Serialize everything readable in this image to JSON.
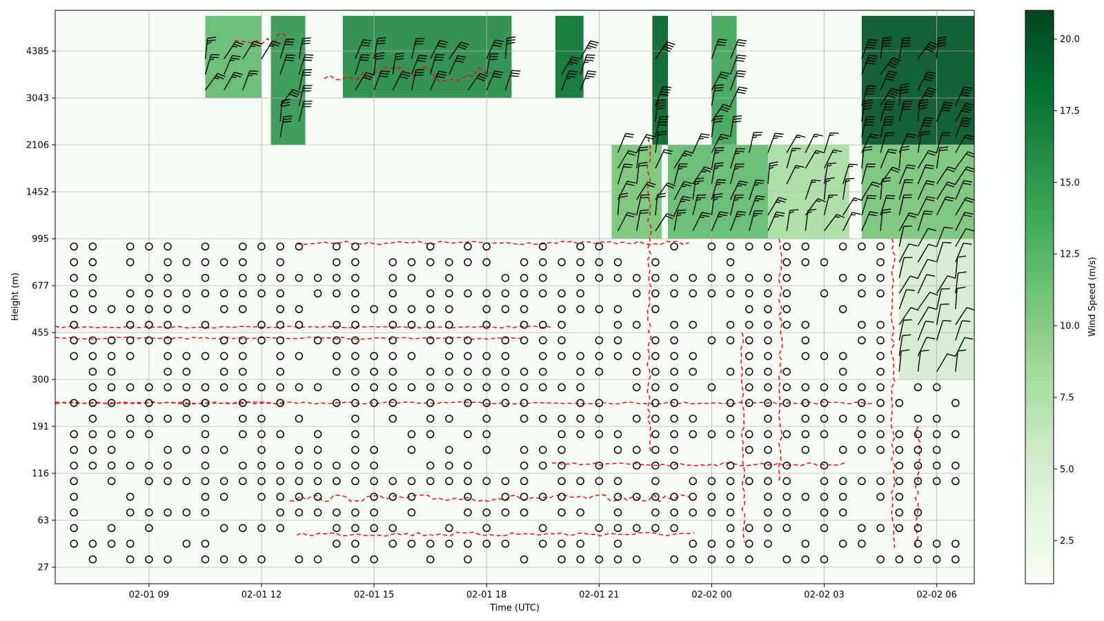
{
  "chart_data": {
    "type": "heatmap",
    "title": "",
    "xlabel": "Time (UTC)",
    "ylabel": "Height (m)",
    "xlim": [
      "02-01 06:30",
      "02-02 07:00"
    ],
    "x_ticks": [
      "02-01 09",
      "02-01 12",
      "02-01 15",
      "02-01 18",
      "02-01 21",
      "02-02 00",
      "02-02 03",
      "02-02 06"
    ],
    "y_ticks": [
      "27",
      "63",
      "116",
      "191",
      "300",
      "455",
      "677",
      "995",
      "1452",
      "2106",
      "3043",
      "4385"
    ],
    "grid": true,
    "colorbar": {
      "label": "Wind Speed (m/s)",
      "colormap": "Greens",
      "range": [
        1,
        21
      ],
      "ticks": [
        "2.5",
        "5.0",
        "7.5",
        "10.0",
        "12.5",
        "15.0",
        "17.5",
        "20.0"
      ]
    },
    "overlays": [
      {
        "type": "wind barbs",
        "color": "#000000",
        "calm_marker": "circle"
      },
      {
        "type": "contour",
        "style": "dashed",
        "color": "#ff0000"
      }
    ],
    "strong_wind_regions": [
      {
        "time_start": "02-01 10:30",
        "time_end": "02-01 12:00",
        "height_start": "3043",
        "height_end": "4385",
        "speed": 12
      },
      {
        "time_start": "02-01 12:15",
        "time_end": "02-01 13:10",
        "height_start": "2106",
        "height_end": "4385",
        "speed": 15
      },
      {
        "time_start": "02-01 14:10",
        "time_end": "02-01 18:40",
        "height_start": "3043",
        "height_end": "4385",
        "speed": 16
      },
      {
        "time_start": "02-01 19:50",
        "time_end": "02-01 20:35",
        "height_start": "3043",
        "height_end": "4385",
        "speed": 18
      },
      {
        "time_start": "02-01 21:20",
        "time_end": "02-01 22:40",
        "height_start": "995",
        "height_end": "2106",
        "speed": 11
      },
      {
        "time_start": "02-01 22:25",
        "time_end": "02-01 22:50",
        "height_start": "2106",
        "height_end": "4385",
        "speed": 19
      },
      {
        "time_start": "02-01 22:50",
        "time_end": "02-02 01:30",
        "height_start": "995",
        "height_end": "2106",
        "speed": 12
      },
      {
        "time_start": "02-02 00:00",
        "time_end": "02-02 00:40",
        "height_start": "2106",
        "height_end": "4385",
        "speed": 14
      },
      {
        "time_start": "02-02 01:30",
        "time_end": "02-02 03:40",
        "height_start": "995",
        "height_end": "2106",
        "speed": 8
      },
      {
        "time_start": "02-02 04:00",
        "time_end": "02-02 07:00",
        "height_start": "2106",
        "height_end": "4385",
        "speed": 20
      },
      {
        "time_start": "02-02 04:00",
        "time_end": "02-02 07:00",
        "height_start": "995",
        "height_end": "2106",
        "speed": 11
      },
      {
        "time_start": "02-02 05:00",
        "time_end": "02-02 07:00",
        "height_start": "300",
        "height_end": "995",
        "speed": 5
      }
    ]
  }
}
